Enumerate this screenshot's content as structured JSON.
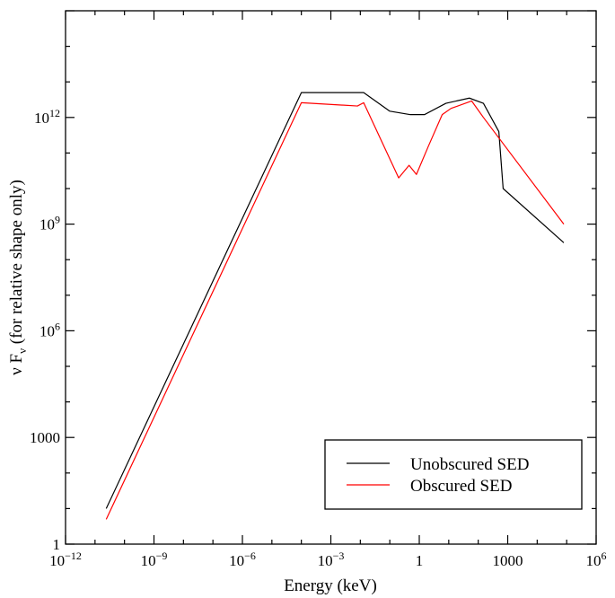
{
  "chart_data": {
    "type": "line",
    "xlabel": "Energy (keV)",
    "ylabel": "ν F",
    "ylabel_sub": "ν",
    "ylabel_suffix": " (for relative shape only)",
    "xscale": "log",
    "yscale": "log",
    "xlim": [
      1e-12,
      1000000.0
    ],
    "ylim": [
      1,
      1000000000000000.0
    ],
    "grid": false,
    "legend_position": "lower-right",
    "x_ticks": [
      {
        "value": 1e-12,
        "base": "10",
        "exp": "−12"
      },
      {
        "value": 1e-09,
        "base": "10",
        "exp": "−9"
      },
      {
        "value": 1e-06,
        "base": "10",
        "exp": "−6"
      },
      {
        "value": 0.001,
        "base": "10",
        "exp": "−3"
      },
      {
        "value": 1,
        "base": "1",
        "exp": ""
      },
      {
        "value": 1000,
        "base": "1000",
        "exp": ""
      },
      {
        "value": 1000000.0,
        "base": "10",
        "exp": "6"
      }
    ],
    "y_ticks": [
      {
        "value": 1,
        "base": "1",
        "exp": ""
      },
      {
        "value": 1000,
        "base": "1000",
        "exp": ""
      },
      {
        "value": 1000000.0,
        "base": "10",
        "exp": "6"
      },
      {
        "value": 1000000000.0,
        "base": "10",
        "exp": "9"
      },
      {
        "value": 1000000000000.0,
        "base": "10",
        "exp": "12"
      }
    ],
    "series": [
      {
        "name": "Unobscured SED",
        "color": "#000000",
        "points": [
          [
            2.4e-11,
            10.0
          ],
          [
            0.0001,
            5000000000000.0
          ],
          [
            0.013,
            5000000000000.0
          ],
          [
            0.1,
            1500000000000.0
          ],
          [
            0.5,
            1200000000000.0
          ],
          [
            1.5,
            1200000000000.0
          ],
          [
            8.0,
            2500000000000.0
          ],
          [
            50,
            3500000000000.0
          ],
          [
            150,
            2500000000000.0
          ],
          [
            500,
            400000000000.0
          ],
          [
            700,
            10000000000.0
          ],
          [
            80000.0,
            300000000.0
          ]
        ]
      },
      {
        "name": "Obscured SED",
        "color": "#ff0000",
        "points": [
          [
            2.4e-11,
            5.0
          ],
          [
            0.0001,
            2600000000000.0
          ],
          [
            0.008,
            2100000000000.0
          ],
          [
            0.013,
            2600000000000.0
          ],
          [
            0.2,
            20000000000.0
          ],
          [
            0.45,
            45000000000.0
          ],
          [
            0.8,
            25000000000.0
          ],
          [
            2.0,
            150000000000.0
          ],
          [
            6.0,
            1200000000000.0
          ],
          [
            12,
            1800000000000.0
          ],
          [
            60,
            2900000000000.0
          ],
          [
            150,
            1000000000000.0
          ],
          [
            80000.0,
            1000000000.0
          ]
        ]
      }
    ]
  }
}
